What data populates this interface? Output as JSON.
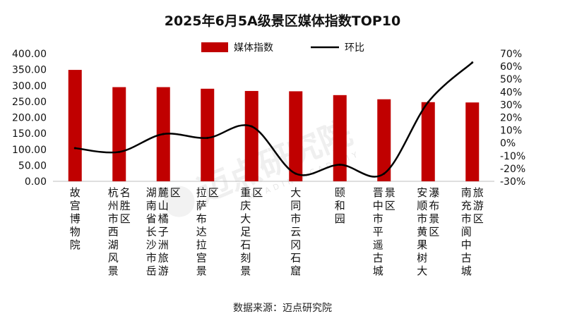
{
  "chart_data": {
    "type": "bar",
    "title": "2025年6月5A级景区媒体指数TOP10",
    "categories": [
      "故宫博物院",
      "杭州市西湖风景名胜区",
      "湖南省长沙市岳麓山橘子洲旅游区",
      "拉萨布达拉宫景区",
      "重庆大足石刻景区",
      "大同市云冈石窟",
      "颐和园",
      "晋中市平遥古城景区",
      "安顺市黄果树大瀑布景区",
      "南充市阆中古城旅游区"
    ],
    "series": [
      {
        "name": "媒体指数",
        "type": "bar",
        "axis": "left",
        "color": "#c00000",
        "values": [
          349,
          295,
          295,
          290,
          283,
          282,
          270,
          257,
          248,
          247
        ]
      },
      {
        "name": "环比",
        "type": "line",
        "axis": "right",
        "unit": "%",
        "color": "#000000",
        "values": [
          -4,
          -7,
          7,
          4,
          13,
          -24,
          -17,
          -24,
          32,
          63
        ]
      }
    ],
    "y_left": {
      "min": 0,
      "max": 400,
      "step": 50,
      "tick_labels": [
        "0.00",
        "50.00",
        "100.00",
        "150.00",
        "200.00",
        "250.00",
        "300.00",
        "350.00",
        "400.00"
      ]
    },
    "y_right": {
      "min": -30,
      "max": 70,
      "step": 10,
      "tick_labels": [
        "-30%",
        "-20%",
        "-10%",
        "0%",
        "10%",
        "20%",
        "30%",
        "40%",
        "50%",
        "60%",
        "70%"
      ]
    },
    "legend": {
      "position": "top-center",
      "entries": [
        "媒体指数",
        "环比"
      ]
    }
  },
  "source": "数据来源：迈点研究院",
  "watermark": {
    "main": "迈点研究院",
    "sub": "MEADIN ACADEMY"
  }
}
